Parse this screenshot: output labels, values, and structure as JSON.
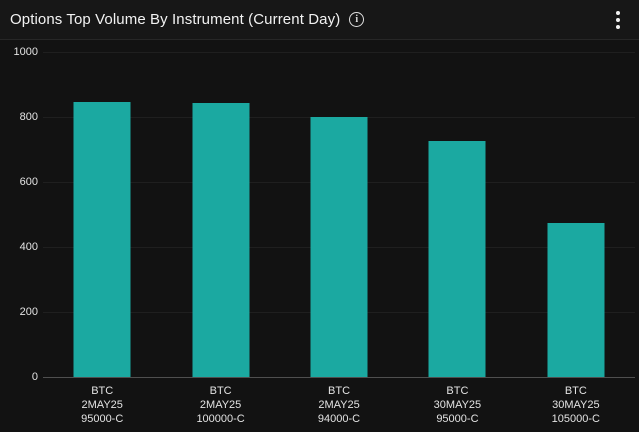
{
  "header": {
    "title": "Options Top Volume By Instrument (Current Day)",
    "info_glyph": "i"
  },
  "colors": {
    "bar": "#1ba9a1",
    "background": "#121212",
    "header_background": "#171717",
    "gridline": "#1f1f1f",
    "baseline": "#4f4f4f",
    "text": "#e3e3e3"
  },
  "chart_data": {
    "type": "bar",
    "title": "Options Top Volume By Instrument (Current Day)",
    "categories": [
      [
        "BTC",
        "2MAY25",
        "95000-C"
      ],
      [
        "BTC",
        "2MAY25",
        "100000-C"
      ],
      [
        "BTC",
        "2MAY25",
        "94000-C"
      ],
      [
        "BTC",
        "30MAY25",
        "95000-C"
      ],
      [
        "BTC",
        "30MAY25",
        "105000-C"
      ]
    ],
    "values": [
      846,
      843,
      800,
      726,
      474
    ],
    "xlabel": "",
    "ylabel": "",
    "ylim": [
      0,
      1000
    ],
    "yticks": [
      0,
      200,
      400,
      600,
      800,
      1000
    ],
    "grid": true,
    "legend": false
  }
}
